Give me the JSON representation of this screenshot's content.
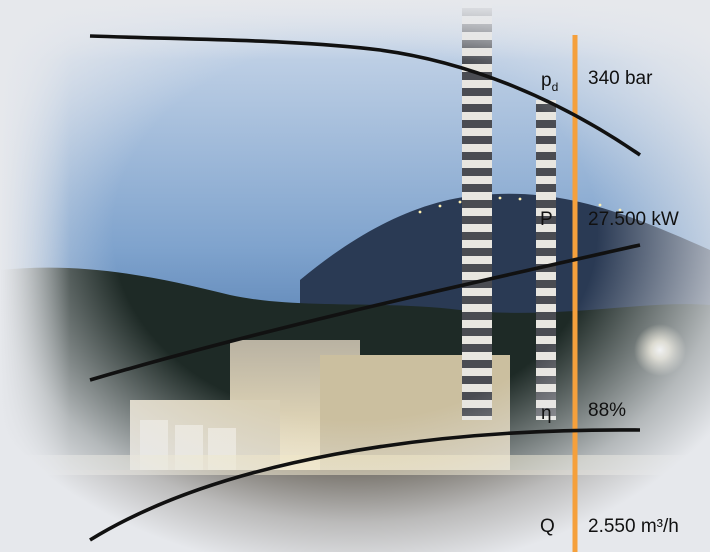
{
  "colors": {
    "sky_top": "#c8d6e8",
    "sky_low": "#4d78ac",
    "hill": "#24324a",
    "vignette": "#e6e8ec",
    "curve": "#111111",
    "operating_line": "#f5a03c",
    "chimney_stripe_light": "#e8e6e0",
    "chimney_stripe_dark": "#4a4c52"
  },
  "labels": {
    "pressure": {
      "symbol": "p",
      "subscript": "d",
      "value": "340 bar"
    },
    "power": {
      "symbol": "P",
      "value": "27.500 kW"
    },
    "efficiency": {
      "symbol": "η",
      "value": "88%"
    },
    "flow": {
      "symbol": "Q",
      "value": "2.550 m³/h"
    }
  }
}
